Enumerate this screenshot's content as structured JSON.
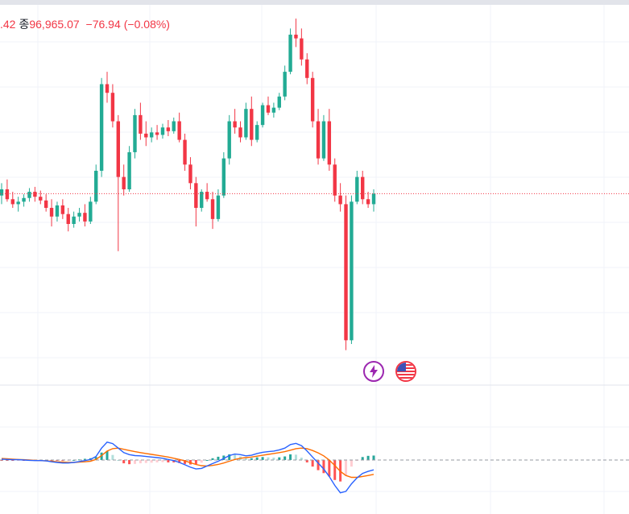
{
  "header": {
    "prefix": ".42",
    "close_label": "종",
    "close_value": "96,965.07",
    "change": "−76.94",
    "change_pct": "(−0.08%)"
  },
  "colors": {
    "up": "#22ab94",
    "down": "#f23645",
    "macd_line": "#2962ff",
    "signal_line": "#ff6d00",
    "grid": "#f0f3fa",
    "price_line": "#f23645",
    "event_badge": "#9c27b0"
  },
  "icons": [
    "lightning-event-icon",
    "us-flag-event-icon"
  ],
  "chart_data": [
    {
      "type": "candlestick",
      "title": "",
      "last_close": 96965.07,
      "change": -76.94,
      "change_pct": -0.08,
      "price_range": [
        95600,
        98400
      ],
      "grid": true,
      "candles": [
        [
          96950,
          97050,
          96880,
          97000
        ],
        [
          97000,
          97080,
          96900,
          96920
        ],
        [
          96920,
          96980,
          96850,
          96880
        ],
        [
          96880,
          96940,
          96820,
          96900
        ],
        [
          96900,
          96960,
          96860,
          96930
        ],
        [
          96930,
          97010,
          96900,
          96980
        ],
        [
          96980,
          97020,
          96900,
          96940
        ],
        [
          96940,
          96990,
          96880,
          96910
        ],
        [
          96910,
          96960,
          96820,
          96850
        ],
        [
          96850,
          96920,
          96700,
          96780
        ],
        [
          96780,
          96900,
          96740,
          96870
        ],
        [
          96870,
          96920,
          96760,
          96800
        ],
        [
          96800,
          96850,
          96660,
          96720
        ],
        [
          96720,
          96820,
          96690,
          96780
        ],
        [
          96780,
          96850,
          96740,
          96810
        ],
        [
          96810,
          96880,
          96700,
          96740
        ],
        [
          96740,
          96940,
          96720,
          96900
        ],
        [
          96900,
          97200,
          96880,
          97150
        ],
        [
          97150,
          97900,
          97100,
          97850
        ],
        [
          97850,
          97950,
          97700,
          97780
        ],
        [
          97780,
          97850,
          97500,
          97550
        ],
        [
          97550,
          97600,
          96500,
          97100
        ],
        [
          97100,
          97200,
          96950,
          97000
        ],
        [
          97000,
          97350,
          96980,
          97300
        ],
        [
          97300,
          97650,
          97250,
          97600
        ],
        [
          97600,
          97700,
          97400,
          97450
        ],
        [
          97450,
          97550,
          97350,
          97420
        ],
        [
          97420,
          97500,
          97380,
          97460
        ],
        [
          97460,
          97520,
          97400,
          97440
        ],
        [
          97440,
          97530,
          97410,
          97500
        ],
        [
          97500,
          97560,
          97430,
          97470
        ],
        [
          97470,
          97580,
          97450,
          97550
        ],
        [
          97550,
          97620,
          97380,
          97400
        ],
        [
          97400,
          97450,
          97150,
          97200
        ],
        [
          97200,
          97260,
          97000,
          97050
        ],
        [
          97050,
          97100,
          96700,
          96850
        ],
        [
          96850,
          97000,
          96820,
          96980
        ],
        [
          96980,
          97050,
          96900,
          96920
        ],
        [
          96920,
          96980,
          96680,
          96760
        ],
        [
          96760,
          97000,
          96740,
          96950
        ],
        [
          96950,
          97300,
          96930,
          97250
        ],
        [
          97250,
          97600,
          97200,
          97550
        ],
        [
          97550,
          97650,
          97450,
          97500
        ],
        [
          97500,
          97550,
          97380,
          97420
        ],
        [
          97420,
          97700,
          97400,
          97650
        ],
        [
          97650,
          97750,
          97350,
          97400
        ],
        [
          97400,
          97550,
          97380,
          97520
        ],
        [
          97520,
          97700,
          97500,
          97680
        ],
        [
          97680,
          97750,
          97600,
          97620
        ],
        [
          97620,
          97700,
          97580,
          97660
        ],
        [
          97660,
          97780,
          97640,
          97750
        ],
        [
          97750,
          98000,
          97720,
          97950
        ],
        [
          97950,
          98300,
          97930,
          98250
        ],
        [
          98250,
          98380,
          98150,
          98220
        ],
        [
          98220,
          98300,
          98000,
          98050
        ],
        [
          98050,
          98100,
          97850,
          97900
        ],
        [
          97900,
          97950,
          97500,
          97550
        ],
        [
          97550,
          97650,
          97200,
          97250
        ],
        [
          97250,
          97600,
          97230,
          97550
        ],
        [
          97550,
          97650,
          97150,
          97200
        ],
        [
          97200,
          97250,
          96900,
          96950
        ],
        [
          96950,
          97050,
          96820,
          96880
        ],
        [
          96880,
          96950,
          95700,
          95780
        ],
        [
          95780,
          96950,
          95750,
          96900
        ],
        [
          96900,
          97150,
          96880,
          97100
        ],
        [
          97100,
          97150,
          96880,
          96920
        ],
        [
          96920,
          96980,
          96850,
          96880
        ],
        [
          96880,
          97000,
          96820,
          96965
        ]
      ]
    },
    {
      "type": "macd",
      "series": [
        {
          "values": [
            3,
            2,
            1,
            1,
            0,
            -1,
            -2,
            -2,
            -3,
            -6,
            -8,
            -10,
            -10,
            -8,
            -5,
            -2,
            2,
            12,
            40,
            60,
            55,
            40,
            25,
            18,
            15,
            14,
            12,
            10,
            8,
            6,
            2,
            -2,
            -8,
            -16,
            -24,
            -30,
            -28,
            -20,
            -12,
            -4,
            5,
            15,
            20,
            18,
            14,
            16,
            22,
            26,
            28,
            30,
            34,
            40,
            52,
            56,
            48,
            30,
            10,
            -10,
            -30,
            -55,
            -85,
            -110,
            -105,
            -80,
            -60,
            -45,
            -38,
            -33
          ]
        },
        {
          "values": [
            5,
            4,
            3,
            2,
            1,
            0,
            -1,
            -2,
            -3,
            -4,
            -6,
            -7,
            -8,
            -8,
            -7,
            -6,
            -4,
            2,
            15,
            30,
            38,
            40,
            36,
            32,
            28,
            25,
            22,
            19,
            16,
            13,
            10,
            6,
            2,
            -3,
            -9,
            -15,
            -19,
            -20,
            -18,
            -15,
            -10,
            -4,
            2,
            6,
            8,
            10,
            13,
            16,
            19,
            22,
            25,
            28,
            33,
            38,
            40,
            38,
            32,
            24,
            14,
            0,
            -18,
            -38,
            -52,
            -58,
            -58,
            -55,
            -52,
            -48
          ]
        }
      ]
    }
  ]
}
